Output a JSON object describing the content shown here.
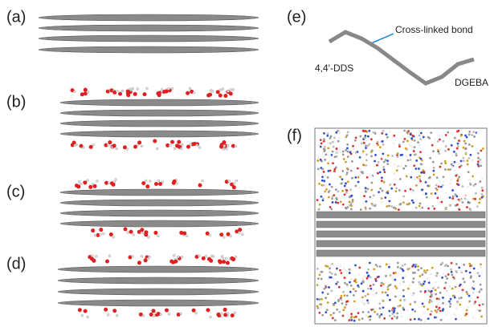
{
  "panels": [
    {
      "label": "(a)"
    },
    {
      "label": "(b)"
    },
    {
      "label": "(c)"
    },
    {
      "label": "(d)"
    },
    {
      "label": "(e)"
    },
    {
      "label": "(f)"
    }
  ],
  "molecule": {
    "bond_label": "Cross-linked bond",
    "left_label": "4,4'-DDS",
    "right_label": "DGEBA"
  }
}
